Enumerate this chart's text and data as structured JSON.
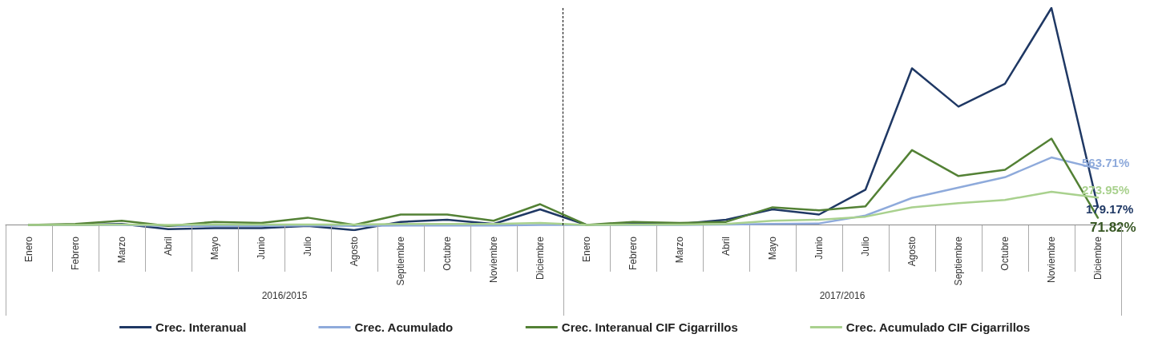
{
  "chart_data": {
    "type": "line",
    "categories": [
      "Enero",
      "Febrero",
      "Marzo",
      "Abril",
      "Mayo",
      "Junio",
      "Julio",
      "Agosto",
      "Septiembre",
      "Octubre",
      "Noviembre",
      "Diciembre",
      "Enero",
      "Febrero",
      "Marzo",
      "Abril",
      "Mayo",
      "Junio",
      "Julio",
      "Agosto",
      "Septiembre",
      "Octubre",
      "Noviembre",
      "Diciembre"
    ],
    "annotations": [
      "2016/2015",
      "2017/2016"
    ],
    "series": [
      {
        "name": "Crec. Interanual",
        "color": "#1f3864",
        "values": [
          0,
          0,
          10,
          -42,
          -31,
          -31,
          -10,
          -52,
          31,
          52,
          10,
          156,
          0,
          10,
          10,
          52,
          156,
          104,
          354,
          1570,
          1186,
          1414,
          2174,
          179.17
        ],
        "value_labels": [
          null,
          null,
          null,
          null,
          null,
          null,
          null,
          null,
          null,
          null,
          null,
          null,
          null,
          null,
          null,
          null,
          null,
          null,
          null,
          null,
          null,
          null,
          null,
          "179.17%"
        ]
      },
      {
        "name": "Crec. Acumulado",
        "color": "#8eaadb",
        "values": [
          0,
          0,
          0,
          -10,
          -10,
          -10,
          -5,
          -10,
          -5,
          -5,
          -5,
          0,
          0,
          0,
          0,
          5,
          10,
          15,
          94,
          270,
          374,
          478,
          676,
          563.71
        ],
        "value_labels": [
          null,
          null,
          null,
          null,
          null,
          null,
          null,
          null,
          null,
          null,
          null,
          null,
          null,
          null,
          null,
          null,
          null,
          null,
          null,
          null,
          null,
          null,
          null,
          "563.71%"
        ]
      },
      {
        "name": "Crec. Interanual CIF Cigarrillos",
        "color": "#538135",
        "values": [
          0,
          10,
          42,
          -10,
          31,
          21,
          73,
          0,
          104,
          104,
          42,
          208,
          0,
          31,
          21,
          31,
          177,
          146,
          187,
          750,
          490,
          552,
          865,
          71.82
        ],
        "value_labels": [
          null,
          null,
          null,
          null,
          null,
          null,
          null,
          null,
          null,
          null,
          null,
          null,
          null,
          null,
          null,
          null,
          null,
          null,
          null,
          null,
          null,
          null,
          null,
          "71.82%"
        ]
      },
      {
        "name": "Crec. Acumulado CIF Cigarrillos",
        "color": "#a9d18e",
        "values": [
          0,
          0,
          5,
          0,
          5,
          5,
          5,
          5,
          10,
          10,
          10,
          20,
          0,
          5,
          5,
          10,
          42,
          52,
          83,
          177,
          218,
          250,
          333,
          273.95
        ],
        "value_labels": [
          null,
          null,
          null,
          null,
          null,
          null,
          null,
          null,
          null,
          null,
          null,
          null,
          null,
          null,
          null,
          null,
          null,
          null,
          null,
          null,
          null,
          null,
          null,
          "273.95%"
        ]
      }
    ],
    "legend": "bottom",
    "grid": false,
    "marker": "none",
    "line_style": "solid"
  }
}
